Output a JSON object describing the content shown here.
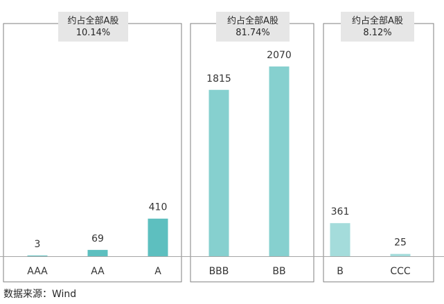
{
  "chart_data": {
    "type": "bar",
    "categories": [
      "AAA",
      "AA",
      "A",
      "BBB",
      "BB",
      "B",
      "CCC"
    ],
    "values": [
      3,
      69,
      410,
      1815,
      2070,
      361,
      25
    ],
    "ylim": [
      0,
      2070
    ],
    "colors": [
      "#5dbfbf",
      "#5dbfbf",
      "#5dbfbf",
      "#86d0cf",
      "#86d0cf",
      "#a4dcdb",
      "#a4dcdb"
    ],
    "groups": [
      {
        "name": "high",
        "line1": "约占全部A股",
        "line2": "10.14%",
        "categories": [
          "AAA",
          "AA",
          "A"
        ]
      },
      {
        "name": "mid",
        "line1": "约占全部A股",
        "line2": "81.74%",
        "categories": [
          "BBB",
          "BB"
        ]
      },
      {
        "name": "low",
        "line1": "约占全部A股",
        "line2": "8.12%",
        "categories": [
          "B",
          "CCC"
        ]
      }
    ],
    "grid": false,
    "legend": "none"
  },
  "source": "数据来源：Wind"
}
